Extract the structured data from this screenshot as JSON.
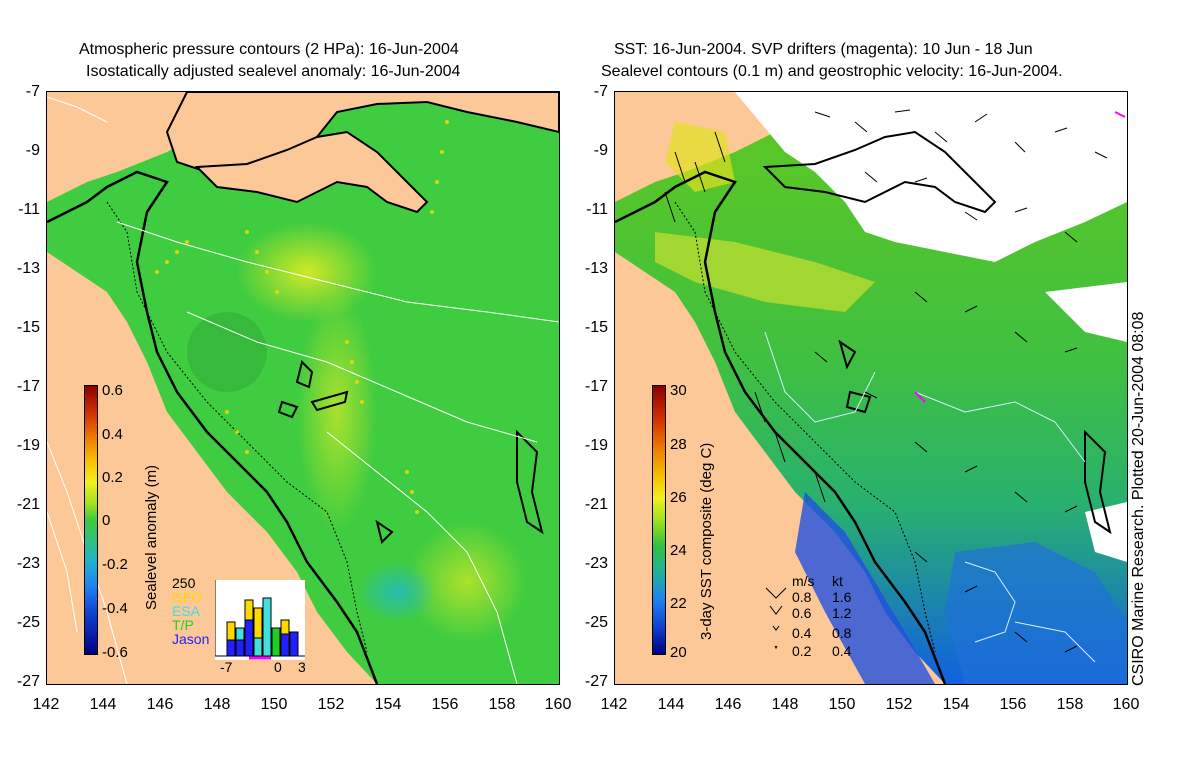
{
  "left_panel": {
    "title_line1": "Atmospheric pressure contours (2 HPa): 16-Jun-2004",
    "title_line2": "Isostatically adjusted sealevel anomaly: 16-Jun-2004",
    "colorbar_label": "Sealevel anomaly (m)",
    "colorbar_ticks": [
      "0.6",
      "0.4",
      "0.2",
      "0",
      "-0.2",
      "-0.4",
      "-0.6"
    ],
    "colorbar_range": [
      -0.6,
      0.6
    ],
    "missions_legend": [
      {
        "name": "GFO",
        "color": "#ffd800"
      },
      {
        "name": "ESA",
        "color": "#40e0e0"
      },
      {
        "name": "T/P",
        "color": "#20d020"
      },
      {
        "name": "Jason",
        "color": "#2020ff"
      }
    ],
    "histogram_ymax": "250",
    "histogram_xticks": [
      "-7",
      "0",
      "3"
    ]
  },
  "right_panel": {
    "title_line1": "SST: 16-Jun-2004. SVP drifters (magenta): 10 Jun - 18 Jun",
    "title_line2": "Sealevel contours (0.1 m) and geostrophic velocity: 16-Jun-2004.",
    "colorbar_label": "3-day SST composite (deg C)",
    "colorbar_ticks": [
      "30",
      "28",
      "26",
      "24",
      "22",
      "20"
    ],
    "colorbar_range": [
      20,
      30
    ],
    "velocity_legend": {
      "header_ms": "m/s",
      "header_kt": "kt",
      "rows": [
        {
          "ms": "0.8",
          "kt": "1.6"
        },
        {
          "ms": "0.6",
          "kt": "1.2"
        },
        {
          "ms": "0.4",
          "kt": "0.8"
        },
        {
          "ms": "0.2",
          "kt": "0.4"
        }
      ]
    }
  },
  "axes": {
    "lat_ticks": [
      "-7",
      "-9",
      "-11",
      "-13",
      "-15",
      "-17",
      "-19",
      "-21",
      "-23",
      "-25",
      "-27"
    ],
    "lon_ticks": [
      "142",
      "144",
      "146",
      "148",
      "150",
      "152",
      "154",
      "156",
      "158",
      "160"
    ]
  },
  "credit": "CSIRO Marine Research. Plotted 20-Jun-2004 08:08",
  "colors": {
    "land": "#fdc898",
    "sea_green": "#38c838",
    "coast": "#000000"
  }
}
